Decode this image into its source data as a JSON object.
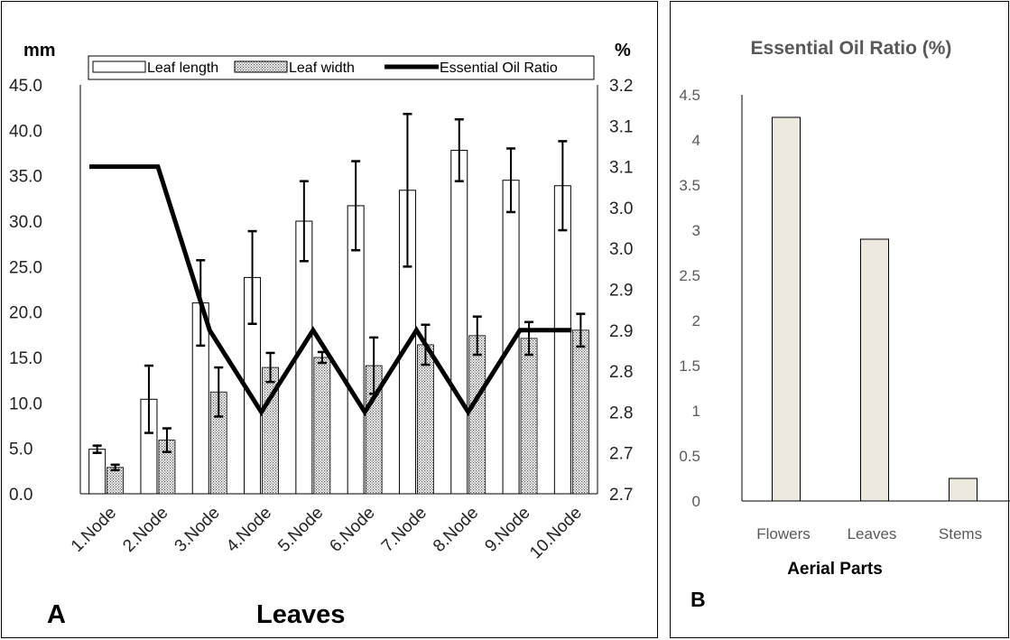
{
  "chart_data": [
    {
      "panel_letter": "A",
      "type": "bar",
      "categories": [
        "1.Node",
        "2.Node",
        "3.Node",
        "4.Node",
        "5.Node",
        "6.Node",
        "7.Node",
        "8.Node",
        "9.Node",
        "10.Node"
      ],
      "xlabel": "Leaves",
      "ylabel_left": "mm",
      "ylabel_right": "%",
      "ylim_left": [
        0,
        45
      ],
      "yticks_left": [
        "0.0",
        "5.0",
        "10.0",
        "15.0",
        "20.0",
        "25.0",
        "30.0",
        "35.0",
        "40.0",
        "45.0"
      ],
      "ylim_right": [
        2.7,
        3.2
      ],
      "yticks_right": [
        "2.7",
        "2.7",
        "2.8",
        "2.8",
        "2.9",
        "2.9",
        "3.0",
        "3.0",
        "3.1",
        "3.1",
        "3.2"
      ],
      "series": [
        {
          "name": "Leaf length",
          "kind": "bar",
          "fill": "#ffffff",
          "values": [
            4.9,
            10.4,
            21.0,
            23.8,
            30.0,
            31.7,
            33.4,
            37.8,
            34.5,
            33.9
          ],
          "errors": [
            0.4,
            3.7,
            4.7,
            5.1,
            4.4,
            4.9,
            8.4,
            3.4,
            3.5,
            4.9
          ]
        },
        {
          "name": "Leaf width",
          "kind": "bar",
          "fill": "dotted",
          "values": [
            2.9,
            5.9,
            11.2,
            13.9,
            15.0,
            14.1,
            16.4,
            17.4,
            17.1,
            18.0
          ],
          "errors": [
            0.3,
            1.3,
            2.7,
            1.6,
            0.6,
            3.1,
            2.2,
            2.1,
            1.8,
            1.8
          ]
        },
        {
          "name": "Essential Oil Ratio",
          "kind": "line",
          "axis": "right",
          "color": "#000000",
          "values": [
            3.1,
            3.1,
            2.9,
            2.8,
            2.9,
            2.8,
            2.9,
            2.8,
            2.9,
            2.9
          ]
        }
      ],
      "legend": "top"
    },
    {
      "panel_letter": "B",
      "type": "bar",
      "title": "Essential Oil Ratio (%)",
      "categories": [
        "Flowers",
        "Leaves",
        "Stems"
      ],
      "values": [
        4.25,
        2.9,
        0.25
      ],
      "xlabel": "Aerial Parts",
      "ylabel": "",
      "ylim": [
        0,
        4.5
      ],
      "yticks": [
        "0",
        "0.5",
        "1",
        "1.5",
        "2",
        "2.5",
        "3",
        "3.5",
        "4",
        "4.5"
      ],
      "bar_color": "#ede9df",
      "grid": false
    }
  ]
}
